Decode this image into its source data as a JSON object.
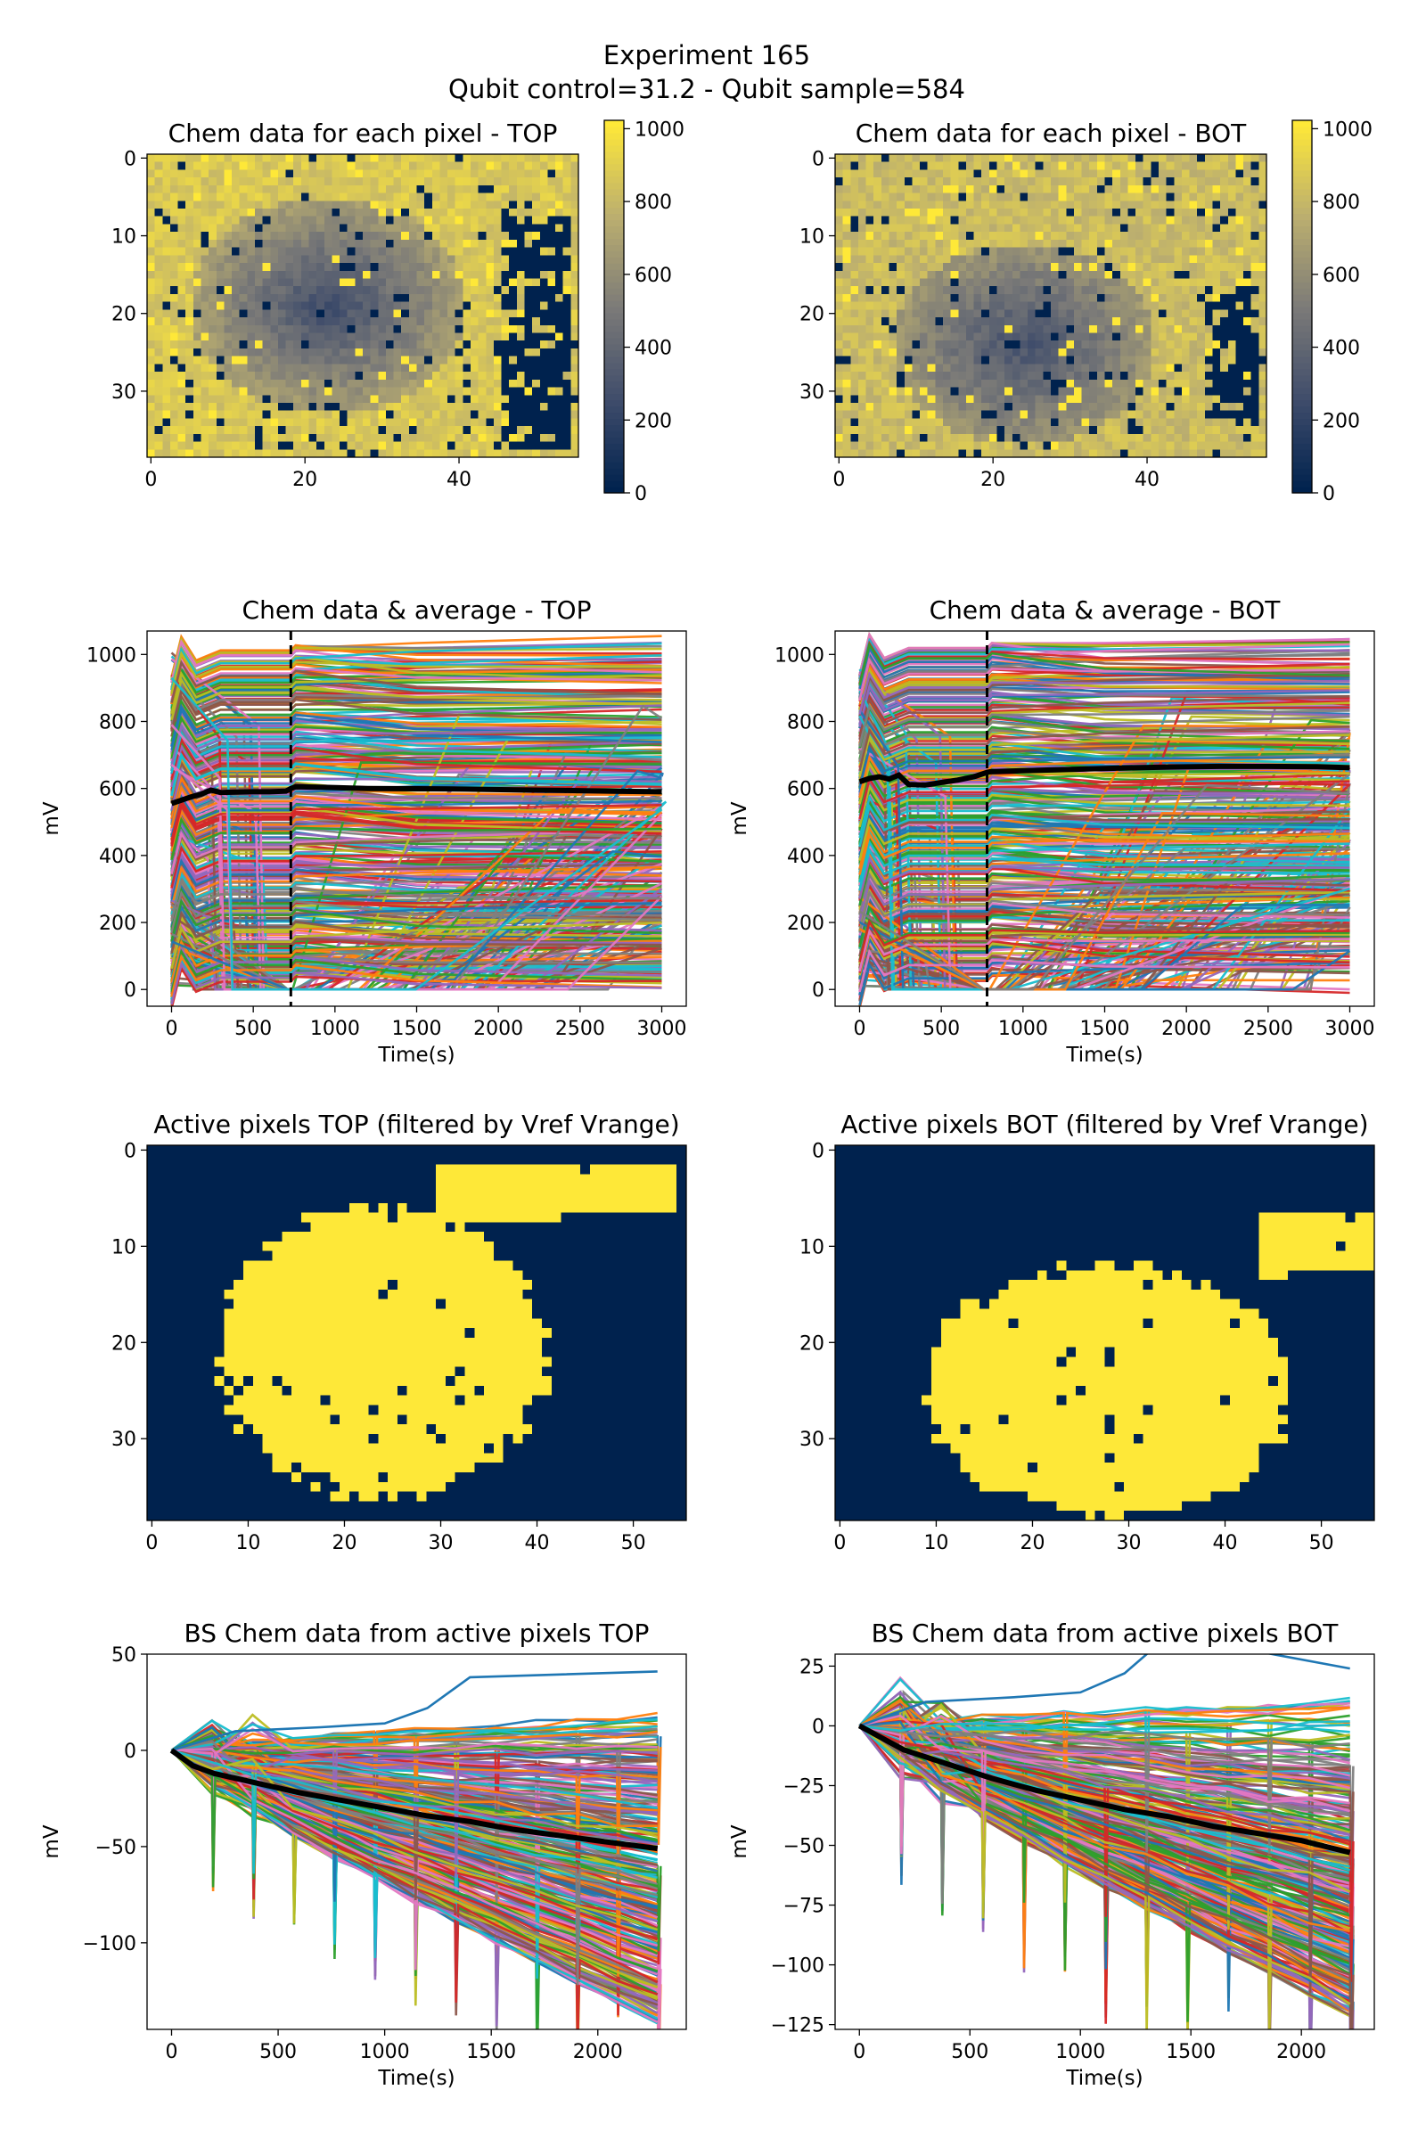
{
  "figure": {
    "title_line1": "Experiment 165",
    "title_line2": "Qubit control=31.2 - Qubit sample=584"
  },
  "colors": {
    "cmap_low": "#00224e",
    "cmap_mid": "#7c7b78",
    "cmap_high": "#fee838",
    "mean_line": "#000000",
    "marker_line": "#000000",
    "trace_cycle": [
      "#1f77b4",
      "#ff7f0e",
      "#2ca02c",
      "#d62728",
      "#9467bd",
      "#8c564b",
      "#e377c2",
      "#7f7f7f",
      "#bcbd22",
      "#17becf"
    ]
  },
  "chart_data": [
    {
      "id": "heat_top",
      "type": "heatmap",
      "title": "Chem data for each pixel - TOP",
      "xticks": [
        0,
        20,
        40
      ],
      "yticks": [
        0,
        10,
        20,
        30
      ],
      "xlim": [
        -0.5,
        55.5
      ],
      "ylim": [
        38.5,
        -0.5
      ],
      "grid": {
        "cols": 56,
        "rows": 39
      },
      "colorbar": {
        "ticks": [
          0,
          200,
          400,
          600,
          800,
          1000
        ],
        "range": [
          0,
          1023
        ]
      },
      "regions": [
        {
          "label": "central depression",
          "center": [
            23,
            19
          ],
          "radius": [
            18,
            14
          ],
          "value_at_center": 250,
          "value_at_edge": 700
        },
        {
          "label": "dark column block",
          "x_range": [
            46,
            54
          ],
          "y_range": [
            8,
            37
          ],
          "value": 0
        }
      ],
      "background_value": 950
    },
    {
      "id": "heat_bot",
      "type": "heatmap",
      "title": "Chem data for each pixel - BOT",
      "xticks": [
        0,
        20,
        40
      ],
      "yticks": [
        0,
        10,
        20,
        30
      ],
      "xlim": [
        -0.5,
        55.5
      ],
      "ylim": [
        38.5,
        -0.5
      ],
      "grid": {
        "cols": 56,
        "rows": 39
      },
      "colorbar": {
        "ticks": [
          0,
          200,
          400,
          600,
          800,
          1000
        ],
        "range": [
          0,
          1023
        ]
      },
      "regions": [
        {
          "label": "central depression",
          "center": [
            24,
            24
          ],
          "radius": [
            17,
            13
          ],
          "value_at_center": 280,
          "value_at_edge": 650
        },
        {
          "label": "dark column block",
          "x_range": [
            48,
            54
          ],
          "y_range": [
            17,
            33
          ],
          "value": 0
        }
      ],
      "background_value": 900
    },
    {
      "id": "line_top",
      "type": "line",
      "title": "Chem data & average - TOP",
      "xlabel": "Time(s)",
      "ylabel": "mV",
      "xticks": [
        0,
        500,
        1000,
        1500,
        2000,
        2500,
        3000
      ],
      "yticks": [
        0,
        200,
        400,
        600,
        800,
        1000
      ],
      "xlim": [
        -150,
        3150
      ],
      "ylim": [
        -50,
        1070
      ],
      "vline_x": 730,
      "mean": {
        "x": [
          0,
          60,
          120,
          180,
          240,
          300,
          400,
          500,
          600,
          700,
          730,
          760,
          900,
          1200,
          1500,
          1800,
          2100,
          2400,
          2700,
          3000
        ],
        "y": [
          555,
          565,
          575,
          583,
          595,
          588,
          589,
          590,
          590,
          592,
          600,
          605,
          604,
          600,
          599,
          598,
          596,
          594,
          592,
          590
        ]
      },
      "trace_count": 400
    },
    {
      "id": "line_bot",
      "type": "line",
      "title": "Chem data & average - BOT",
      "xlabel": "Time(s)",
      "ylabel": "mV",
      "xticks": [
        0,
        500,
        1000,
        1500,
        2000,
        2500,
        3000
      ],
      "yticks": [
        0,
        200,
        400,
        600,
        800,
        1000
      ],
      "xlim": [
        -150,
        3150
      ],
      "ylim": [
        -50,
        1070
      ],
      "vline_x": 780,
      "mean": {
        "x": [
          0,
          60,
          120,
          180,
          240,
          300,
          400,
          500,
          600,
          700,
          780,
          800,
          1000,
          1300,
          1600,
          1900,
          2200,
          2500,
          2800,
          3000
        ],
        "y": [
          620,
          630,
          635,
          628,
          640,
          612,
          610,
          618,
          625,
          635,
          648,
          650,
          653,
          657,
          661,
          664,
          666,
          666,
          665,
          662
        ]
      },
      "trace_count": 400
    },
    {
      "id": "active_top",
      "type": "heatmap",
      "title": "Active pixels TOP (filtered by Vref Vrange)",
      "xticks": [
        0,
        10,
        20,
        30,
        40,
        50
      ],
      "yticks": [
        0,
        10,
        20,
        30
      ],
      "xlim": [
        -0.5,
        55.5
      ],
      "ylim": [
        38.5,
        -0.5
      ],
      "grid": {
        "cols": 56,
        "rows": 39
      },
      "regions": [
        {
          "label": "active blob",
          "center": [
            24,
            21
          ],
          "radius": [
            17,
            15
          ],
          "value": 1
        },
        {
          "label": "upper lobe",
          "x_range": [
            30,
            54
          ],
          "y_range": [
            2,
            7
          ],
          "value": 1
        },
        {
          "label": "inactive right block",
          "x_range": [
            43,
            55
          ],
          "y_range": [
            7,
            34
          ],
          "value": 0
        }
      ]
    },
    {
      "id": "active_bot",
      "type": "heatmap",
      "title": "Active pixels BOT (filtered by Vref Vrange)",
      "xticks": [
        0,
        10,
        20,
        30,
        40,
        50
      ],
      "yticks": [
        0,
        10,
        20,
        30
      ],
      "xlim": [
        -0.5,
        55.5
      ],
      "ylim": [
        38.5,
        -0.5
      ],
      "grid": {
        "cols": 56,
        "rows": 39
      },
      "regions": [
        {
          "label": "active blob",
          "center": [
            28,
            25
          ],
          "radius": [
            19,
            13
          ],
          "value": 1
        },
        {
          "label": "right arm",
          "x_range": [
            44,
            55
          ],
          "y_range": [
            7,
            13
          ],
          "value": 1
        },
        {
          "label": "inactive right block",
          "x_range": [
            47,
            55
          ],
          "y_range": [
            13,
            35
          ],
          "value": 0
        }
      ]
    },
    {
      "id": "bs_top",
      "type": "line",
      "title": "BS Chem data from active pixels TOP",
      "xlabel": "Time(s)",
      "ylabel": "mV",
      "xticks": [
        0,
        500,
        1000,
        1500,
        2000
      ],
      "yticks": [
        50,
        0,
        -50,
        -100
      ],
      "xlim": [
        -115,
        2415
      ],
      "ylim": [
        -145,
        50
      ],
      "mean": {
        "x": [
          0,
          100,
          200,
          400,
          600,
          800,
          1000,
          1200,
          1400,
          1600,
          1800,
          2000,
          2280
        ],
        "y": [
          0,
          -8,
          -12,
          -17,
          -22,
          -26,
          -30,
          -34,
          -37,
          -41,
          -44,
          -47,
          -51
        ]
      },
      "envelope_low_end": -140,
      "envelope_high_end": 41,
      "trace_count": 300
    },
    {
      "id": "bs_bot",
      "type": "line",
      "title": "BS Chem data from active pixels BOT",
      "xlabel": "Time(s)",
      "ylabel": "mV",
      "xticks": [
        0,
        500,
        1000,
        1500,
        2000
      ],
      "yticks": [
        25,
        0,
        -25,
        -50,
        -75,
        -100,
        -125
      ],
      "xlim": [
        -110,
        2330
      ],
      "ylim": [
        -127,
        30
      ],
      "mean": {
        "x": [
          0,
          100,
          200,
          400,
          600,
          800,
          1000,
          1200,
          1400,
          1600,
          1800,
          2000,
          2220
        ],
        "y": [
          0,
          -5,
          -10,
          -16,
          -22,
          -27,
          -31,
          -35,
          -38,
          -42,
          -45,
          -48,
          -53
        ]
      },
      "envelope_low_end": -120,
      "envelope_high_end": 24,
      "trace_count": 300
    }
  ]
}
